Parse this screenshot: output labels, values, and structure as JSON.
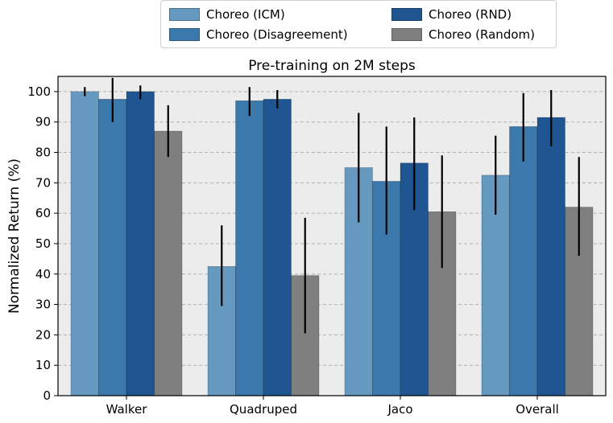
{
  "chart_data": {
    "type": "bar",
    "title": "Pre-training on 2M steps",
    "xlabel": "",
    "ylabel": "Normalized Return (%)",
    "ylim": [
      0,
      105
    ],
    "yticks": [
      0,
      10,
      20,
      30,
      40,
      50,
      60,
      70,
      80,
      90,
      100
    ],
    "grid": "y-dashed",
    "legend_position": "top-center-outside",
    "categories": [
      "Walker",
      "Quadruped",
      "Jaco",
      "Overall"
    ],
    "series": [
      {
        "name": "Choreo (ICM)",
        "color": "#6699c0",
        "values": [
          100,
          42.5,
          75,
          72.5
        ],
        "err_low": [
          98.5,
          29.5,
          57,
          59.5
        ],
        "err_high": [
          101.5,
          56,
          93,
          85.5
        ]
      },
      {
        "name": "Choreo (Disagreement)",
        "color": "#3b78ac",
        "values": [
          97.5,
          97,
          70.5,
          88.5
        ],
        "err_low": [
          90,
          92,
          53,
          77
        ],
        "err_high": [
          104.5,
          101.5,
          88.5,
          99.5
        ]
      },
      {
        "name": "Choreo (RND)",
        "color": "#1f5590",
        "values": [
          100,
          97.5,
          76.5,
          91.5
        ],
        "err_low": [
          97.5,
          94.5,
          61,
          82
        ],
        "err_high": [
          102,
          100.5,
          91.5,
          100.5
        ]
      },
      {
        "name": "Choreo (Random)",
        "color": "#7f7f7f",
        "values": [
          87,
          39.5,
          60.5,
          62
        ],
        "err_low": [
          78.5,
          20.5,
          42,
          46
        ],
        "err_high": [
          95.5,
          58.5,
          79,
          78.5
        ]
      }
    ]
  }
}
